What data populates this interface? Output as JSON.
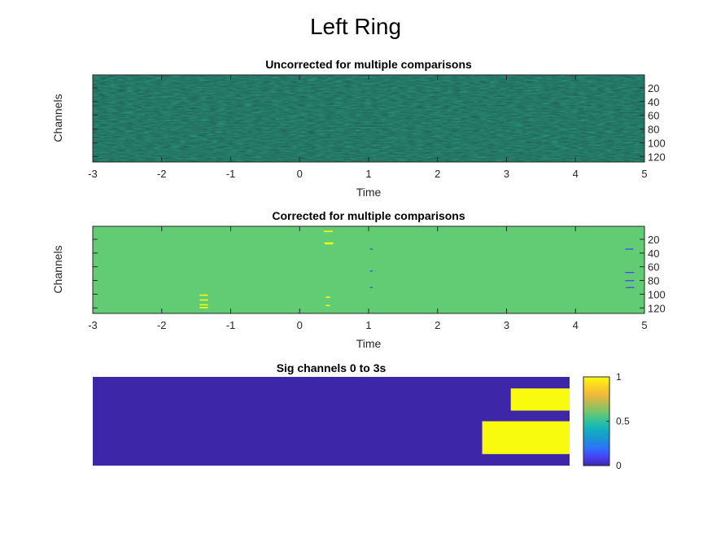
{
  "figure": {
    "title": "Left Ring"
  },
  "colors": {
    "axis": "#262626",
    "parula": [
      "#3e26a8",
      "#4743f8",
      "#2c73fa",
      "#1a94d4",
      "#11aec0",
      "#2ec29e",
      "#6fc66e",
      "#b4bd52",
      "#f1b83a",
      "#fbd424",
      "#f9fb0e"
    ]
  },
  "chart_data": [
    {
      "type": "heatmap",
      "title": "Uncorrected for multiple comparisons",
      "xlabel": "Time",
      "ylabel": "Channels",
      "xlim": [
        -3,
        5
      ],
      "ylim": [
        1,
        128
      ],
      "xticks": [
        "-3",
        "-2",
        "-1",
        "0",
        "1",
        "2",
        "3",
        "4",
        "5"
      ],
      "yticks": [
        "20",
        "40",
        "60",
        "80",
        "100",
        "120"
      ],
      "values": "dense random-field t-values across channels 1-128 and time -3 to 5 s; no discrete labelled values",
      "grid": false
    },
    {
      "type": "heatmap",
      "title": "Corrected for multiple comparisons",
      "xlabel": "Time",
      "ylabel": "Channels",
      "xlim": [
        -3,
        5
      ],
      "ylim": [
        1,
        128
      ],
      "xticks": [
        "-3",
        "-2",
        "-1",
        "0",
        "1",
        "2",
        "3",
        "4",
        "5"
      ],
      "yticks": [
        "20",
        "40",
        "60",
        "80",
        "100",
        "120"
      ],
      "background_value": 0,
      "positive_clusters": [
        {
          "t0": 0.35,
          "t1": 0.48,
          "channel": 8
        },
        {
          "t0": 0.36,
          "t1": 0.49,
          "channel": 25
        },
        {
          "t0": 0.37,
          "t1": 0.48,
          "channel": 26
        },
        {
          "t0": 0.38,
          "t1": 0.44,
          "channel": 104
        },
        {
          "t0": 0.38,
          "t1": 0.44,
          "channel": 116
        },
        {
          "t0": -1.45,
          "t1": -1.33,
          "channel": 101
        },
        {
          "t0": -1.45,
          "t1": -1.33,
          "channel": 108
        },
        {
          "t0": -1.45,
          "t1": -1.33,
          "channel": 115
        },
        {
          "t0": -1.45,
          "t1": -1.33,
          "channel": 119
        }
      ],
      "negative_clusters": [
        {
          "t0": 1.02,
          "t1": 1.06,
          "channel": 34
        },
        {
          "t0": 1.02,
          "t1": 1.06,
          "channel": 66
        },
        {
          "t0": 1.02,
          "t1": 1.06,
          "channel": 90
        },
        {
          "t0": 4.72,
          "t1": 4.84,
          "channel": 34
        },
        {
          "t0": 4.72,
          "t1": 4.85,
          "channel": 68
        },
        {
          "t0": 4.72,
          "t1": 4.85,
          "channel": 80
        },
        {
          "t0": 4.73,
          "t1": 4.85,
          "channel": 90
        }
      ],
      "grid": false
    },
    {
      "type": "heatmap",
      "title": "Sig channels 0 to 3s",
      "xlim": [
        0,
        3
      ],
      "ylim": [
        0,
        1
      ],
      "clim": [
        0,
        1
      ],
      "background_value": 0,
      "regions": [
        {
          "t0": 2.63,
          "t1": 3.0,
          "y0": 0.62,
          "y1": 0.87,
          "value": 1
        },
        {
          "t0": 2.45,
          "t1": 3.0,
          "y0": 0.13,
          "y1": 0.5,
          "value": 1
        }
      ],
      "colorbar": {
        "ticks": [
          "0",
          "0.5",
          "1"
        ],
        "range": [
          0,
          1
        ]
      }
    }
  ]
}
